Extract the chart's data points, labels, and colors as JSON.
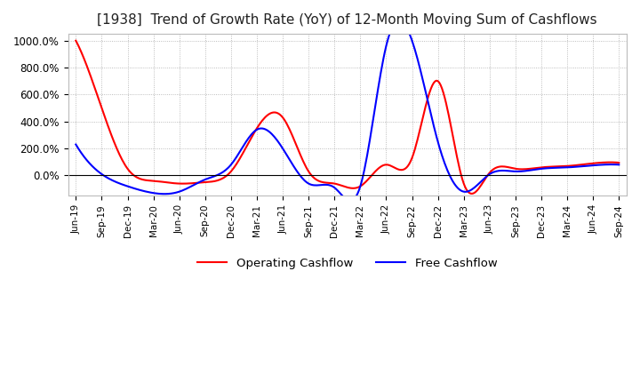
{
  "title": "[1938]  Trend of Growth Rate (YoY) of 12-Month Moving Sum of Cashflows",
  "title_fontsize": 11,
  "ylim": [
    -150,
    1050
  ],
  "yticks": [
    0,
    200,
    400,
    600,
    800,
    1000
  ],
  "ytick_labels": [
    "0.0%",
    "200.0%",
    "400.0%",
    "600.0%",
    "800.0%",
    "1000.0%"
  ],
  "background_color": "#ffffff",
  "grid_color": "#aaaaaa",
  "legend_labels": [
    "Operating Cashflow",
    "Free Cashflow"
  ],
  "legend_colors": [
    "red",
    "blue"
  ],
  "x_labels": [
    "Jun-19",
    "Sep-19",
    "Dec-19",
    "Mar-20",
    "Jun-20",
    "Sep-20",
    "Dec-20",
    "Mar-21",
    "Jun-21",
    "Sep-21",
    "Dec-21",
    "Mar-22",
    "Jun-22",
    "Sep-22",
    "Dec-22",
    "Mar-23",
    "Jun-23",
    "Sep-23",
    "Dec-23",
    "Mar-24",
    "Jun-24",
    "Sep-24"
  ],
  "operating_cashflow": [
    1000,
    500,
    50,
    -40,
    -60,
    -50,
    30,
    350,
    430,
    30,
    -60,
    -80,
    80,
    130,
    700,
    -60,
    20,
    50,
    60,
    70,
    90,
    95
  ],
  "free_cashflow": [
    230,
    10,
    -80,
    -130,
    -120,
    -30,
    80,
    340,
    200,
    -60,
    -90,
    -80,
    960,
    1000,
    250,
    -120,
    10,
    30,
    50,
    60,
    75,
    80
  ]
}
